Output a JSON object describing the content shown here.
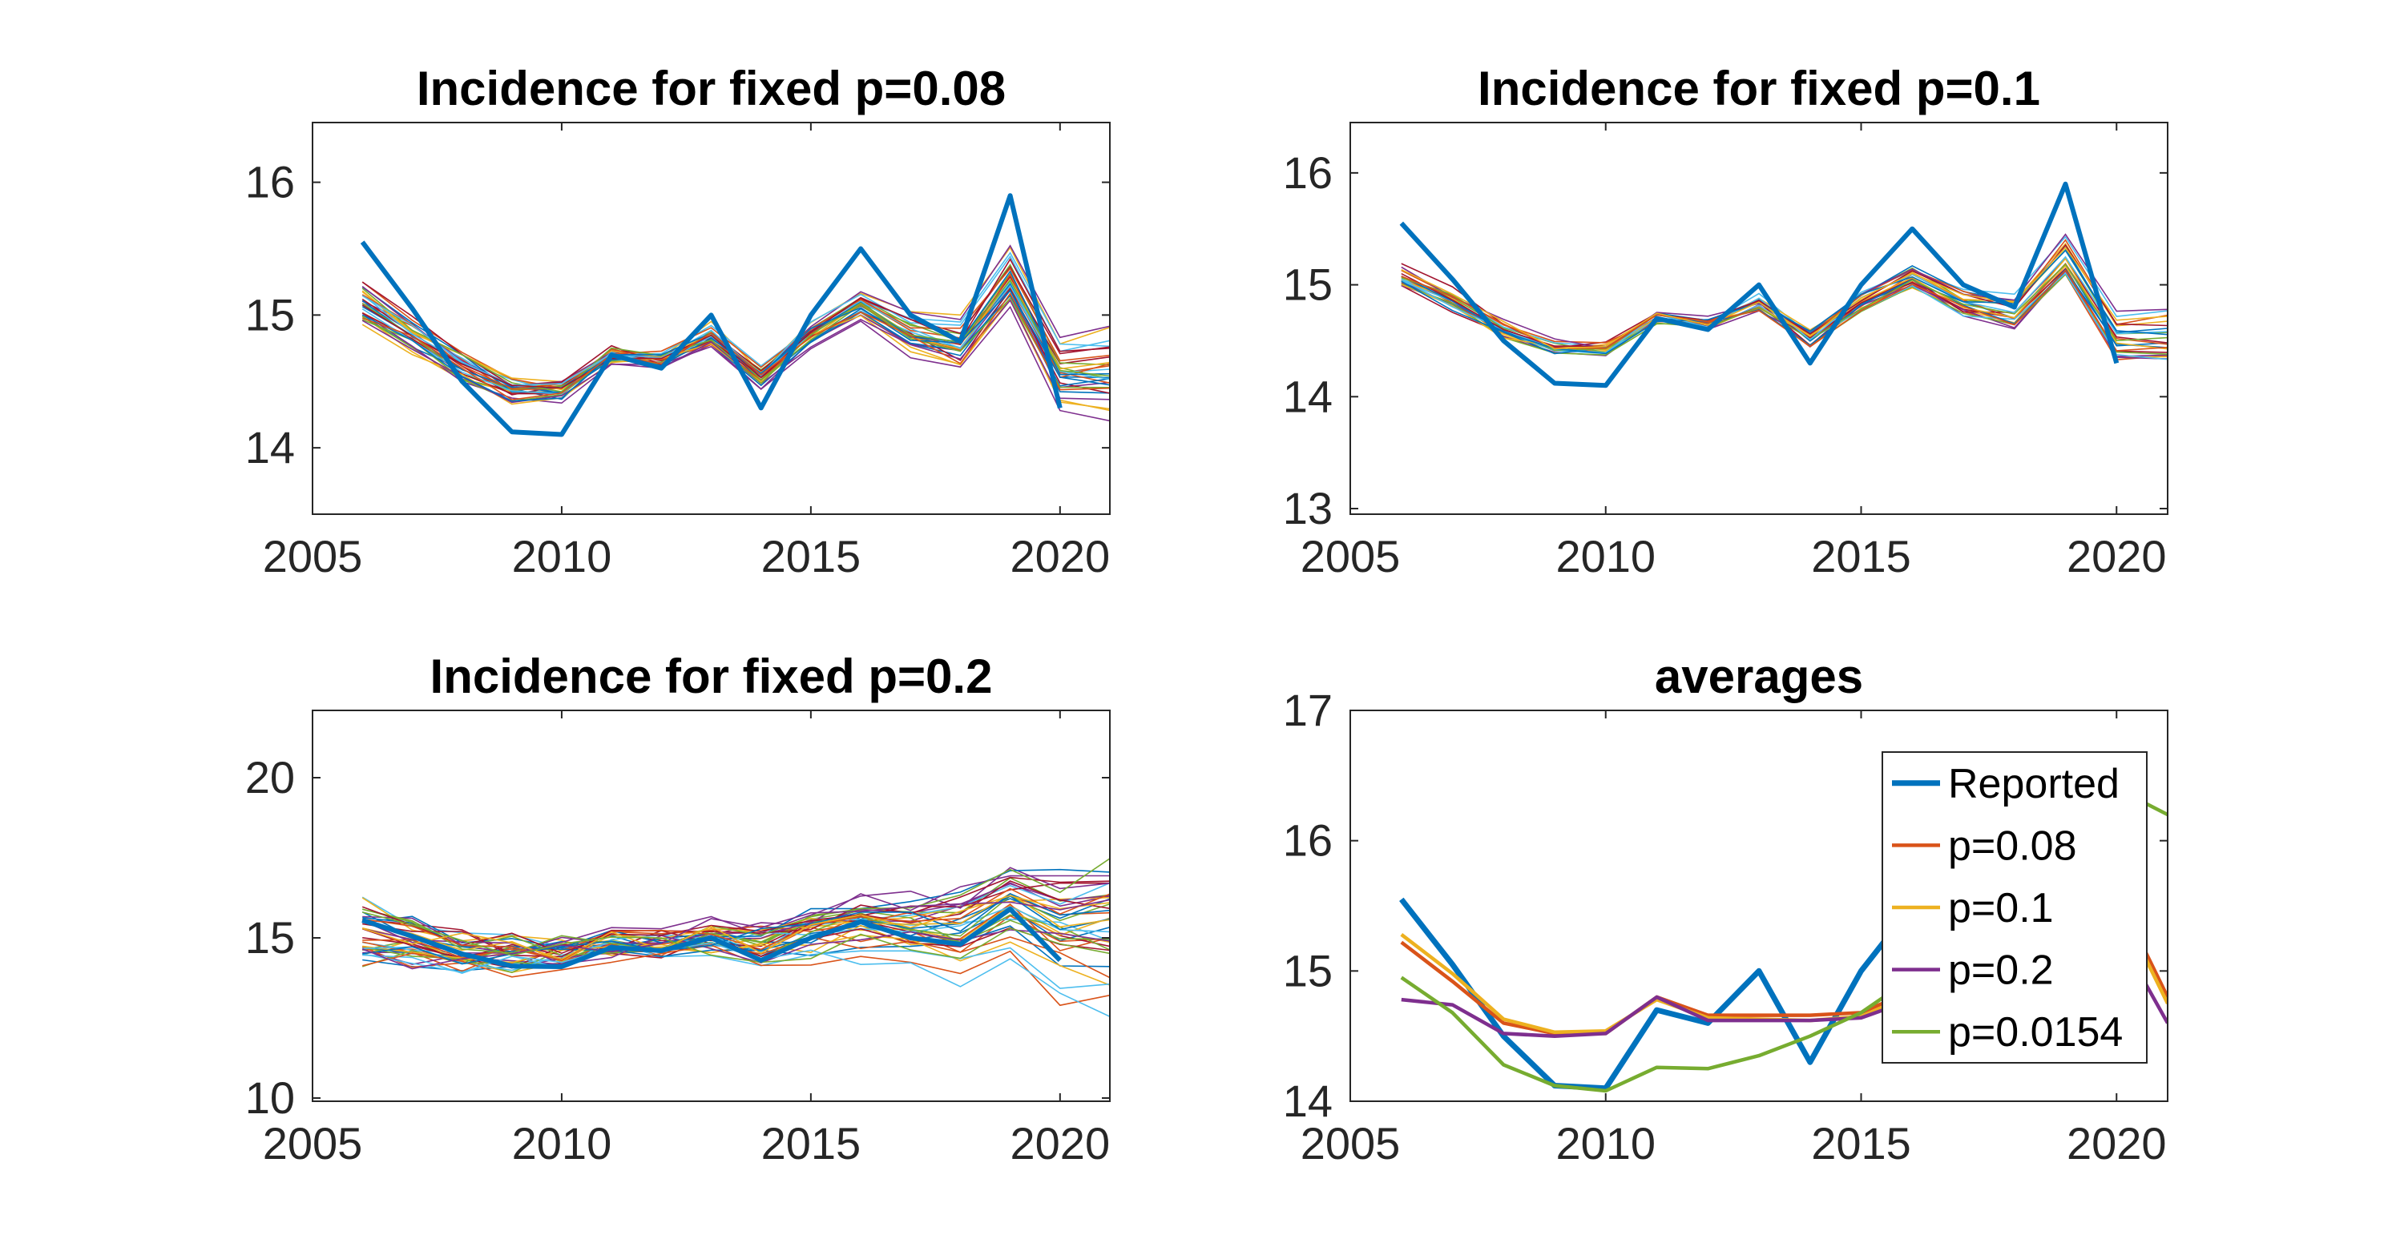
{
  "chart_data": [
    {
      "type": "line",
      "title": "Incidence for fixed p=0.08",
      "xlabel": "",
      "ylabel": "",
      "xlim": [
        2005,
        2021
      ],
      "ylim": [
        13.5,
        16.45
      ],
      "xticks": [
        2005,
        2010,
        2015,
        2020
      ],
      "yticks": [
        14,
        15,
        16
      ],
      "grid": false,
      "reported": {
        "x": [
          2006,
          2007,
          2008,
          2009,
          2010,
          2011,
          2012,
          2013,
          2014,
          2015,
          2016,
          2017,
          2018,
          2019,
          2020
        ],
        "y": [
          15.55,
          15.05,
          14.5,
          14.12,
          14.1,
          14.7,
          14.6,
          15.0,
          14.3,
          15.0,
          15.5,
          15.0,
          14.8,
          15.9,
          14.3
        ]
      },
      "simulated_runs": 30,
      "spread": 0.35,
      "seed": 11
    },
    {
      "type": "line",
      "title": "Incidence for fixed p=0.1",
      "xlabel": "",
      "ylabel": "",
      "xlim": [
        2005,
        2021
      ],
      "ylim": [
        12.95,
        16.45
      ],
      "xticks": [
        2005,
        2010,
        2015,
        2020
      ],
      "yticks": [
        13,
        14,
        15,
        16
      ],
      "grid": false,
      "reported": {
        "x": [
          2006,
          2007,
          2008,
          2009,
          2010,
          2011,
          2012,
          2013,
          2014,
          2015,
          2016,
          2017,
          2018,
          2019,
          2020
        ],
        "y": [
          15.55,
          15.05,
          14.5,
          14.12,
          14.1,
          14.7,
          14.6,
          15.0,
          14.3,
          15.0,
          15.5,
          15.0,
          14.8,
          15.9,
          14.3
        ]
      },
      "simulated_runs": 24,
      "spread": 0.3,
      "seed": 23
    },
    {
      "type": "line",
      "title": "Incidence for fixed p=0.2",
      "xlabel": "",
      "ylabel": "",
      "xlim": [
        2005,
        2021
      ],
      "ylim": [
        9.9,
        22.1
      ],
      "xticks": [
        2005,
        2010,
        2015,
        2020
      ],
      "yticks": [
        10,
        15,
        20
      ],
      "grid": false,
      "reported": {
        "x": [
          2006,
          2007,
          2008,
          2009,
          2010,
          2011,
          2012,
          2013,
          2014,
          2015,
          2016,
          2017,
          2018,
          2019,
          2020
        ],
        "y": [
          15.55,
          15.05,
          14.5,
          14.12,
          14.1,
          14.7,
          14.6,
          15.0,
          14.3,
          15.0,
          15.5,
          15.0,
          14.8,
          15.9,
          14.3
        ]
      },
      "simulated_runs": 40,
      "spread": 2.6,
      "seed": 37
    },
    {
      "type": "line",
      "title": "averages",
      "xlabel": "",
      "ylabel": "",
      "xlim": [
        2005,
        2021
      ],
      "ylim": [
        14,
        17
      ],
      "xticks": [
        2005,
        2010,
        2015,
        2020
      ],
      "yticks": [
        14,
        15,
        16,
        17
      ],
      "grid": false,
      "legend": "inside right",
      "series": [
        {
          "name": "Reported",
          "color": "#0072BD",
          "x": [
            2006,
            2007,
            2008,
            2009,
            2010,
            2011,
            2012,
            2013,
            2014,
            2015,
            2016,
            2017,
            2018,
            2019,
            2020
          ],
          "y": [
            15.55,
            15.05,
            14.5,
            14.12,
            14.1,
            14.7,
            14.6,
            15.0,
            14.3,
            15.0,
            15.5,
            15.0,
            14.8,
            15.9,
            14.3
          ]
        },
        {
          "name": "p=0.08",
          "color": "#D95319",
          "x": [
            2006,
            2007,
            2008,
            2009,
            2010,
            2011,
            2012,
            2013,
            2014,
            2015,
            2016,
            2017,
            2018,
            2019,
            2020,
            2021
          ],
          "y": [
            15.22,
            14.92,
            14.6,
            14.52,
            14.52,
            14.8,
            14.66,
            14.66,
            14.66,
            14.68,
            14.85,
            14.97,
            15.05,
            15.3,
            15.6,
            14.8
          ]
        },
        {
          "name": "p=0.1",
          "color": "#EDB120",
          "x": [
            2006,
            2007,
            2008,
            2009,
            2010,
            2011,
            2012,
            2013,
            2014,
            2015,
            2016,
            2017,
            2018,
            2019,
            2020,
            2021
          ],
          "y": [
            15.28,
            14.98,
            14.63,
            14.53,
            14.54,
            14.78,
            14.64,
            14.63,
            14.62,
            14.65,
            14.82,
            14.95,
            15.05,
            15.28,
            15.55,
            14.75
          ]
        },
        {
          "name": "p=0.2",
          "color": "#7E2F8E",
          "x": [
            2006,
            2007,
            2008,
            2009,
            2010,
            2011,
            2012,
            2013,
            2014,
            2015,
            2016,
            2017,
            2018,
            2019,
            2020,
            2021
          ],
          "y": [
            14.78,
            14.74,
            14.52,
            14.5,
            14.52,
            14.8,
            14.62,
            14.62,
            14.62,
            14.64,
            14.78,
            14.9,
            15.0,
            15.2,
            15.3,
            14.6
          ]
        },
        {
          "name": "p=0.0154",
          "color": "#77AC30",
          "x": [
            2006,
            2007,
            2008,
            2009,
            2010,
            2011,
            2012,
            2013,
            2014,
            2015,
            2016,
            2017,
            2018,
            2019,
            2020,
            2021
          ],
          "y": [
            14.95,
            14.68,
            14.28,
            14.12,
            14.08,
            14.26,
            14.25,
            14.35,
            14.5,
            14.68,
            14.95,
            15.3,
            15.7,
            16.0,
            16.4,
            16.2
          ]
        }
      ]
    }
  ]
}
